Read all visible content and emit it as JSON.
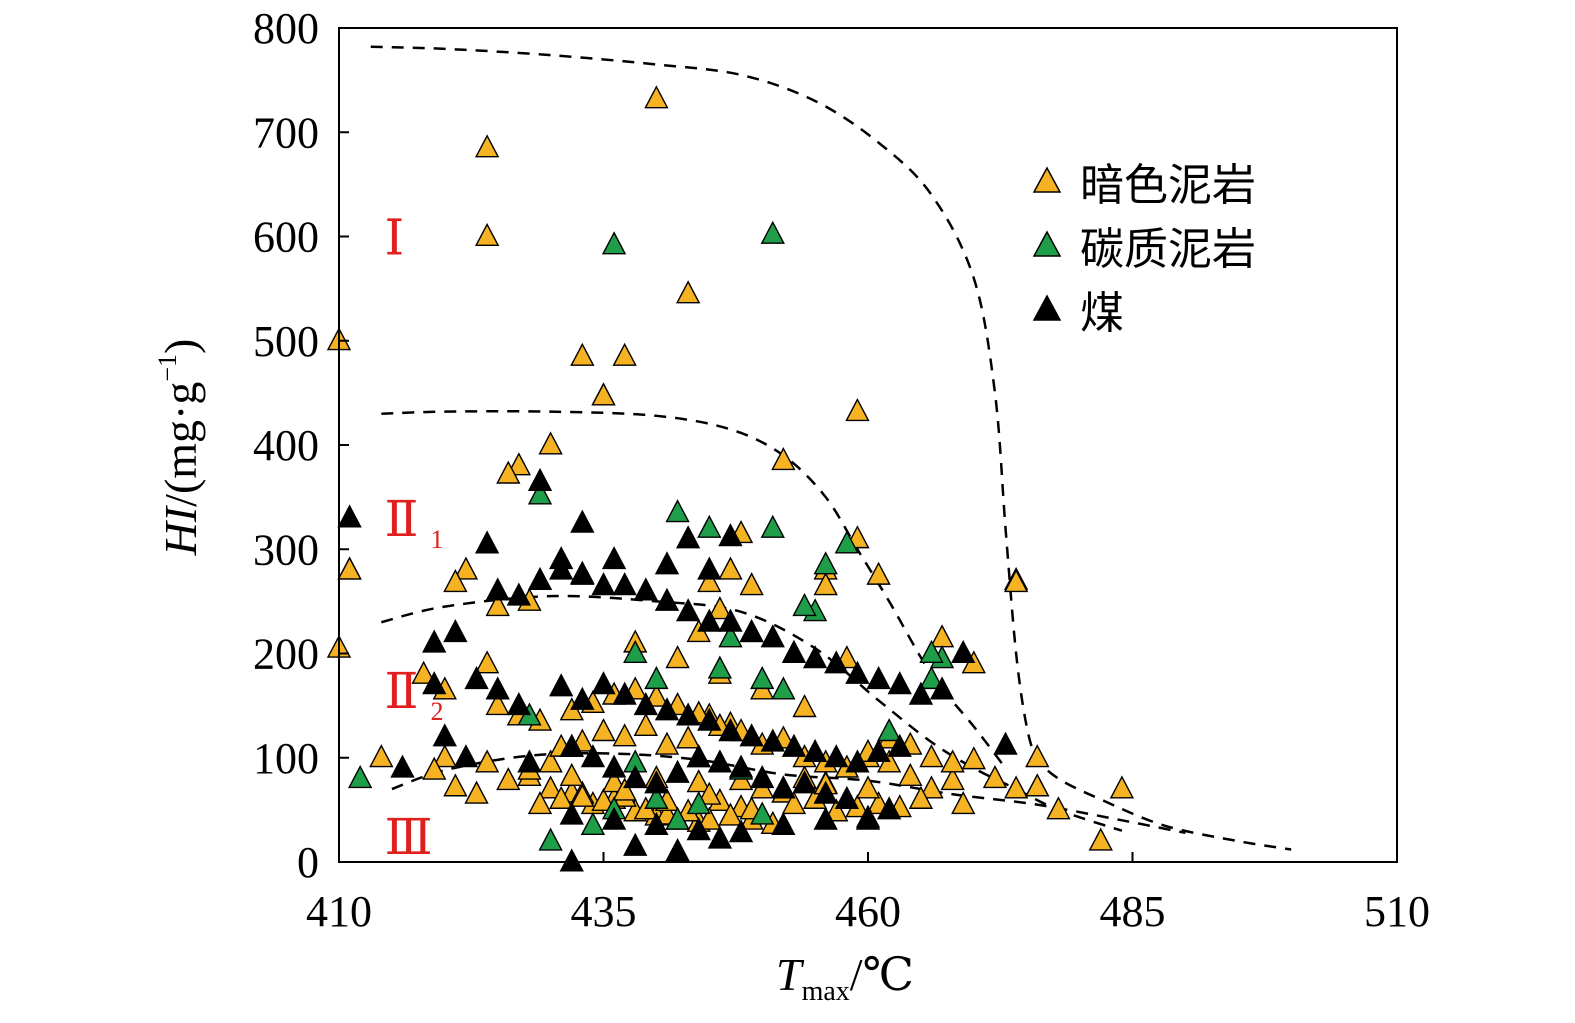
{
  "chart_data": {
    "type": "scatter",
    "xlabel": {
      "main": "T",
      "sub": "max",
      "suffix": "/℃"
    },
    "ylabel": {
      "main": "HI",
      "suffix": "/(mg·g",
      "sup": "−1",
      "close": ")"
    },
    "xlim": [
      410,
      510
    ],
    "ylim": [
      0,
      800
    ],
    "xticks": [
      "410",
      "435",
      "460",
      "485",
      "510"
    ],
    "yticks": [
      "0",
      "100",
      "200",
      "300",
      "400",
      "500",
      "600",
      "700",
      "800"
    ],
    "legend": {
      "placement": "top-right",
      "entries": [
        "暗色泥岩",
        "碳质泥岩",
        "煤"
      ]
    },
    "colors": {
      "dark_mudstone": "#f5b324",
      "carbonaceous_mudstone": "#1f9e4a",
      "coal": "#000000",
      "region_label": "#e0201e"
    },
    "regions": [
      {
        "label": "Ⅰ",
        "sub": "",
        "x": 416,
        "y": 600
      },
      {
        "label": "Ⅱ",
        "sub": "1",
        "x": 416,
        "y": 330
      },
      {
        "label": "Ⅱ",
        "sub": "2",
        "x": 416,
        "y": 165
      },
      {
        "label": "Ⅲ",
        "sub": "",
        "x": 416,
        "y": 25
      }
    ],
    "boundaries": [
      {
        "name": "I-II1",
        "x": [
          413,
          420,
          430,
          440,
          448,
          455,
          461,
          466,
          470,
          472,
          473,
          474,
          475,
          476,
          478,
          482,
          488,
          495,
          500
        ],
        "y": [
          782,
          780,
          774,
          765,
          755,
          730,
          690,
          640,
          560,
          450,
          320,
          200,
          130,
          100,
          80,
          60,
          35,
          20,
          12
        ]
      },
      {
        "name": "II1-II2",
        "x": [
          414,
          420,
          430,
          440,
          447,
          452,
          456,
          459,
          462,
          466,
          470,
          473
        ],
        "y": [
          430,
          432,
          432,
          428,
          415,
          390,
          350,
          300,
          250,
          180,
          130,
          90
        ]
      },
      {
        "name": "II2-III",
        "x": [
          414,
          420,
          430,
          440,
          448,
          455,
          461,
          466,
          470,
          474,
          478,
          484
        ],
        "y": [
          230,
          245,
          255,
          250,
          240,
          205,
          155,
          115,
          90,
          70,
          50,
          30
        ]
      },
      {
        "name": "III-lower",
        "x": [
          415,
          420,
          428,
          436,
          444,
          452,
          460,
          468,
          476,
          484,
          490
        ],
        "y": [
          70,
          88,
          102,
          104,
          98,
          84,
          78,
          65,
          55,
          40,
          28
        ]
      }
    ],
    "series": [
      {
        "name": "暗色泥岩",
        "x": [
          410,
          411,
          410,
          411,
          424,
          424,
          440,
          443,
          435,
          435,
          437,
          433,
          452,
          459,
          430,
          427,
          426,
          448,
          422,
          421,
          428,
          444,
          445,
          446,
          449,
          449,
          447,
          453,
          456,
          456,
          458,
          459,
          461,
          467,
          470,
          474,
          474,
          425,
          424,
          420,
          418,
          420,
          414,
          419,
          421,
          423,
          426,
          428,
          430,
          432,
          434,
          436,
          438,
          440,
          442,
          444,
          446,
          448,
          450,
          452,
          454,
          456,
          458,
          460,
          462,
          464,
          466,
          468,
          470,
          472,
          474,
          476,
          478,
          482,
          484,
          430,
          431,
          433,
          435,
          437,
          439,
          441,
          443,
          445,
          447,
          425,
          427,
          429,
          432,
          434,
          436,
          438,
          440,
          442,
          444,
          446,
          448,
          450,
          452,
          454,
          456,
          458,
          460,
          462,
          464,
          466,
          468,
          429,
          431,
          433,
          435,
          437,
          439,
          441,
          443,
          445,
          447,
          449,
          451,
          453,
          455,
          457,
          459,
          461,
          463,
          424,
          428,
          432,
          436,
          440,
          444,
          448,
          452,
          456,
          460,
          465,
          469,
          476,
          476,
          438,
          442,
          446,
          450,
          454,
          433,
          437,
          441,
          445,
          449
        ],
        "y": [
          500,
          280,
          205,
          280,
          685,
          600,
          732,
          545,
          447,
          447,
          485,
          485,
          385,
          432,
          400,
          380,
          372,
          315,
          280,
          268,
          250,
          220,
          268,
          242,
          265,
          220,
          280,
          200,
          280,
          265,
          195,
          310,
          275,
          215,
          190,
          270,
          268,
          245,
          190,
          165,
          180,
          100,
          100,
          88,
          72,
          65,
          78,
          82,
          70,
          66,
          55,
          60,
          48,
          44,
          40,
          38,
          58,
          52,
          70,
          66,
          80,
          75,
          90,
          100,
          95,
          82,
          70,
          78,
          98,
          80,
          70,
          72,
          50,
          20,
          70,
          95,
          110,
          115,
          125,
          120,
          130,
          112,
          118,
          140,
          132,
          150,
          140,
          135,
          145,
          152,
          160,
          165,
          158,
          150,
          142,
          130,
          125,
          112,
          118,
          100,
          95,
          90,
          105,
          118,
          112,
          100,
          95,
          55,
          60,
          65,
          58,
          62,
          50,
          45,
          48,
          40,
          44,
          40,
          36,
          55,
          60,
          48,
          52,
          55,
          52,
          95,
          88,
          82,
          76,
          80,
          76,
          78,
          70,
          74,
          70,
          60,
          55,
          100,
          72,
          210,
          195,
          180,
          165,
          148,
          62,
          68,
          58,
          64,
          50
        ]
      },
      {
        "name": "碳质泥岩",
        "x": [
          436,
          451,
          412,
          429,
          433,
          438,
          442,
          445,
          447,
          451,
          452,
          458,
          455,
          456,
          462,
          467,
          440,
          446,
          450,
          454,
          466,
          466,
          428,
          432,
          438,
          444,
          448,
          436,
          440,
          444,
          450,
          430,
          434,
          442
        ],
        "y": [
          592,
          602,
          80,
          352,
          276,
          200,
          335,
          320,
          215,
          320,
          165,
          305,
          240,
          285,
          125,
          195,
          175,
          185,
          175,
          245,
          175,
          200,
          140,
          110,
          95,
          100,
          88,
          50,
          60,
          55,
          45,
          20,
          35,
          40
        ],
        "color": "#1f9e4a"
      },
      {
        "name": "煤",
        "x": [
          411,
          429,
          433,
          443,
          447,
          424,
          431,
          436,
          441,
          445,
          419,
          421,
          425,
          427,
          429,
          431,
          433,
          435,
          437,
          439,
          441,
          443,
          445,
          447,
          449,
          451,
          453,
          455,
          457,
          459,
          461,
          463,
          465,
          467,
          469,
          473,
          416,
          419,
          423,
          425,
          427,
          431,
          433,
          435,
          437,
          439,
          441,
          443,
          445,
          447,
          449,
          451,
          453,
          455,
          457,
          459,
          461,
          463,
          420,
          422,
          428,
          432,
          434,
          436,
          438,
          440,
          442,
          444,
          446,
          448,
          450,
          452,
          454,
          456,
          458,
          460,
          462,
          432,
          436,
          440,
          444,
          448,
          452,
          456,
          460,
          438,
          442,
          446,
          432
        ],
        "y": [
          330,
          365,
          325,
          310,
          312,
          305,
          290,
          290,
          285,
          280,
          210,
          220,
          260,
          255,
          270,
          280,
          275,
          265,
          265,
          260,
          250,
          240,
          230,
          230,
          220,
          215,
          200,
          195,
          190,
          180,
          175,
          170,
          160,
          165,
          200,
          112,
          90,
          170,
          175,
          165,
          150,
          168,
          155,
          170,
          160,
          150,
          145,
          140,
          135,
          125,
          120,
          115,
          110,
          105,
          100,
          95,
          105,
          110,
          120,
          100,
          95,
          110,
          100,
          90,
          80,
          75,
          85,
          100,
          95,
          90,
          80,
          70,
          75,
          65,
          60,
          40,
          50,
          45,
          40,
          35,
          30,
          28,
          35,
          40,
          42,
          15,
          10,
          22,
          0
        ],
        "color": "#000000"
      }
    ]
  }
}
